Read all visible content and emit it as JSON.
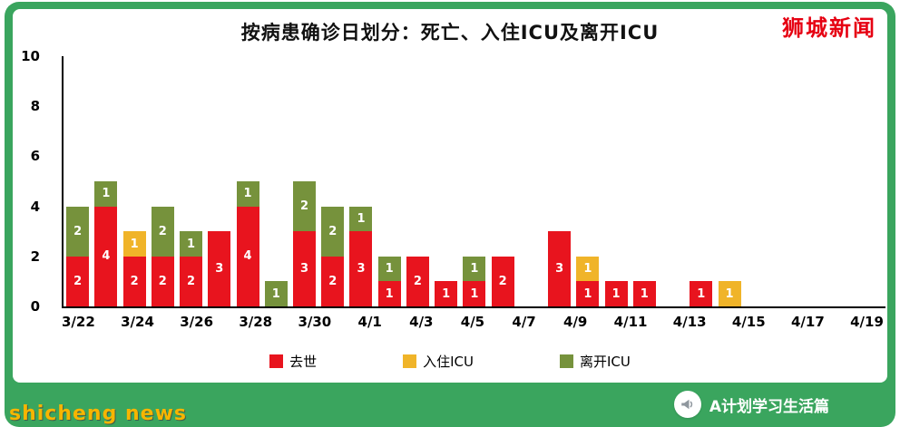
{
  "page": {
    "brand": "狮城新闻",
    "brand_color": "#e60012",
    "frame_color": "#3aa55e",
    "watermark": "shicheng news",
    "watermark_color": "#f7b500",
    "footer_logo_text": "A计划学习生活篇"
  },
  "chart_data": {
    "type": "bar",
    "stacked": true,
    "title": "按病患确诊日划分：死亡、入住ICU及离开ICU",
    "xlabel": "",
    "ylabel": "",
    "ylim": [
      0,
      10
    ],
    "y_ticks": [
      0,
      2,
      4,
      6,
      8,
      10
    ],
    "grid": false,
    "legend_position": "bottom",
    "x_tick_labels": [
      "3/22",
      "3/24",
      "3/26",
      "3/28",
      "3/30",
      "4/1",
      "4/3",
      "4/5",
      "4/7",
      "4/9",
      "4/11",
      "4/13",
      "4/15",
      "4/17",
      "4/19"
    ],
    "categories": [
      "3/22",
      "3/23",
      "3/24",
      "3/25",
      "3/26",
      "3/27",
      "3/28",
      "3/29",
      "3/30",
      "3/31",
      "4/1",
      "4/2",
      "4/3",
      "4/4",
      "4/5",
      "4/6",
      "4/7",
      "4/8",
      "4/9",
      "4/10",
      "4/11",
      "4/12",
      "4/13",
      "4/14",
      "4/15",
      "4/16",
      "4/17",
      "4/18",
      "4/19"
    ],
    "series": [
      {
        "name": "去世",
        "color": "#e8141e",
        "values": [
          2,
          4,
          2,
          2,
          2,
          3,
          4,
          0,
          3,
          2,
          3,
          1,
          2,
          1,
          1,
          2,
          0,
          3,
          1,
          1,
          1,
          0,
          1,
          0,
          0,
          0,
          0,
          0,
          0
        ]
      },
      {
        "name": "入住ICU",
        "color": "#f0b429",
        "values": [
          0,
          0,
          1,
          0,
          0,
          0,
          0,
          0,
          0,
          0,
          0,
          0,
          0,
          0,
          0,
          0,
          0,
          0,
          1,
          0,
          0,
          0,
          0,
          1,
          0,
          0,
          0,
          0,
          0
        ]
      },
      {
        "name": "离开ICU",
        "color": "#76923c",
        "values": [
          2,
          1,
          0,
          2,
          1,
          0,
          1,
          1,
          2,
          2,
          1,
          1,
          0,
          0,
          1,
          0,
          0,
          0,
          0,
          0,
          0,
          0,
          0,
          0,
          0,
          0,
          0,
          0,
          0
        ]
      }
    ]
  }
}
